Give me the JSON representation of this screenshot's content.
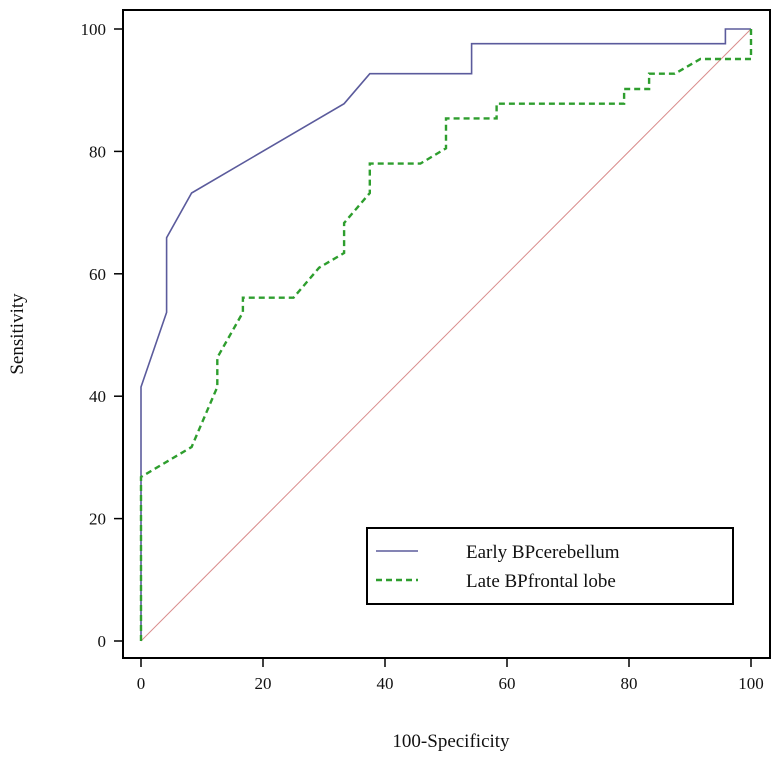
{
  "chart_data": {
    "type": "line",
    "title": "",
    "xlabel": "100-Specificity",
    "ylabel": "Sensitivity",
    "xlim": [
      0,
      100
    ],
    "ylim": [
      0,
      100
    ],
    "xticks": [
      "0",
      "20",
      "40",
      "60",
      "80",
      "100"
    ],
    "yticks": [
      "0",
      "20",
      "40",
      "60",
      "80",
      "100"
    ],
    "grid": false,
    "legend_position": "bottom-right",
    "series": [
      {
        "name": "Early BPcerebellum",
        "color": "#5b5b9c",
        "style": "solid",
        "x": [
          0,
          0,
          4.2,
          4.2,
          8.3,
          33.3,
          37.5,
          54.2,
          54.2,
          95.8,
          95.8,
          100,
          100
        ],
        "y": [
          0,
          41.5,
          53.7,
          65.9,
          73.2,
          87.8,
          92.7,
          92.7,
          97.6,
          97.6,
          100,
          100,
          100
        ]
      },
      {
        "name": "Late BPfrontal lobe",
        "color": "#2e9e2e",
        "style": "dashed",
        "x": [
          0,
          0,
          8.3,
          12.5,
          12.5,
          16.7,
          16.7,
          25,
          29.2,
          33.3,
          33.3,
          37.5,
          37.5,
          45.8,
          50,
          50,
          58.3,
          58.3,
          79.2,
          79.2,
          83.3,
          83.3,
          87.5,
          91.7,
          100,
          100
        ],
        "y": [
          0,
          26.8,
          31.7,
          41.5,
          46.3,
          53.7,
          56.1,
          56.1,
          61,
          63.4,
          68.3,
          73.2,
          78,
          78,
          80.5,
          85.4,
          85.4,
          87.8,
          87.8,
          90.2,
          90.2,
          92.7,
          92.7,
          95.1,
          95.1,
          100
        ]
      },
      {
        "name": "reference",
        "color": "#d98c8c",
        "style": "thin",
        "x": [
          0,
          100
        ],
        "y": [
          0,
          100
        ]
      }
    ]
  }
}
